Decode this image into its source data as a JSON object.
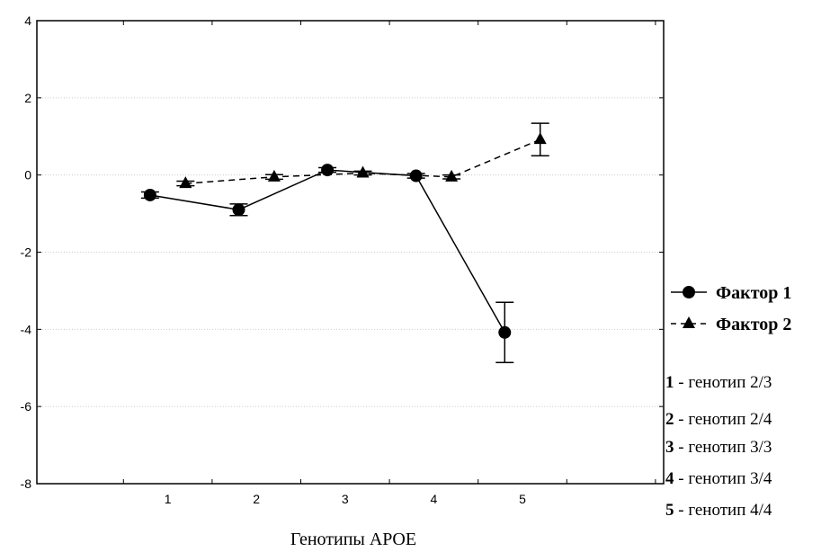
{
  "chart_data": {
    "type": "line",
    "title": "",
    "xlabel": "Генотипы APOE",
    "ylabel": "",
    "ylim": [
      -8,
      4
    ],
    "yticks": [
      4,
      2,
      0,
      -2,
      -4,
      -6,
      -8
    ],
    "categories": [
      "1",
      "2",
      "3",
      "4",
      "5"
    ],
    "grid": true,
    "legend_position": "right",
    "series": [
      {
        "name": "Фактор 1",
        "marker": "circle",
        "line_style": "solid",
        "x_offset": -0.2,
        "values": [
          -0.52,
          -0.9,
          0.13,
          -0.02,
          -4.08
        ],
        "error": [
          0.08,
          0.15,
          0.06,
          0.06,
          0.78
        ]
      },
      {
        "name": "Фактор 2",
        "marker": "triangle",
        "line_style": "dashed",
        "x_offset": 0.2,
        "values": [
          -0.22,
          -0.05,
          0.05,
          -0.05,
          0.92
        ],
        "error": [
          0.06,
          0.06,
          0.05,
          0.05,
          0.42
        ]
      }
    ]
  },
  "legend_notes": [
    {
      "num": "1",
      "text": " - генотип 2/3"
    },
    {
      "num": "2",
      "text": " - генотип 2/4"
    },
    {
      "num": "3",
      "text": " - генотип 3/3"
    },
    {
      "num": "4",
      "text": " - генотип 3/4"
    },
    {
      "num": "5",
      "text": " - генотип 4/4"
    }
  ]
}
